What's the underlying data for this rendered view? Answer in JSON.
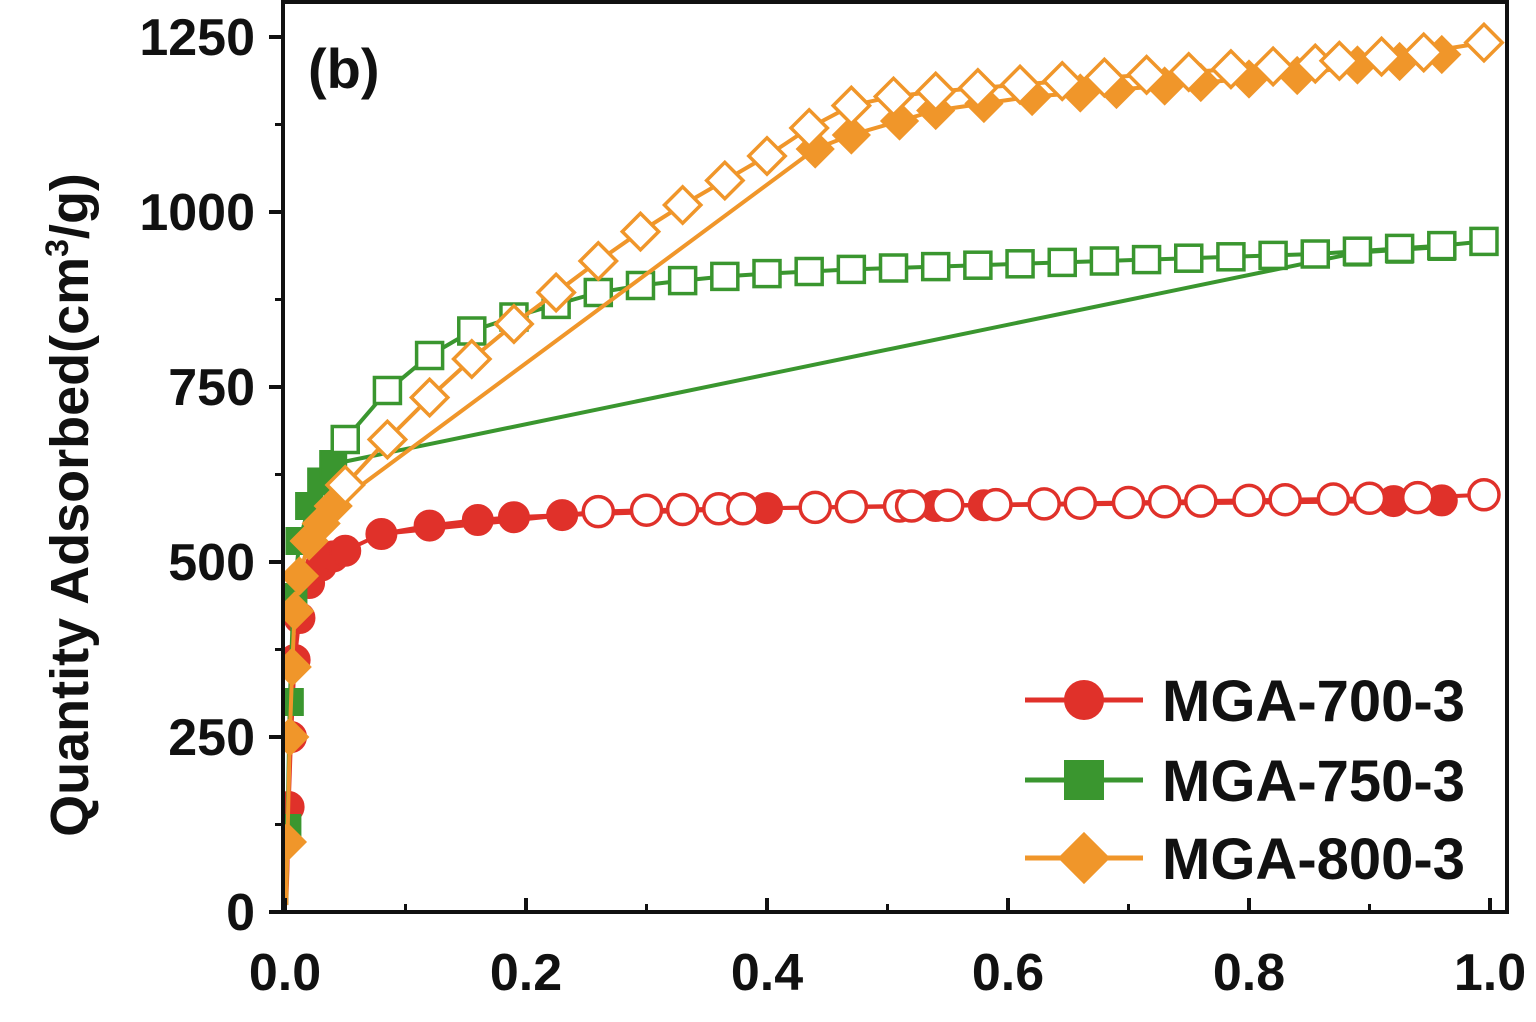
{
  "chart_data": {
    "type": "scatter",
    "panel_label": "(b)",
    "xlabel": "",
    "ylabel_main": "Quantity Adsorbed(cm",
    "ylabel_sup": "3",
    "ylabel_tail": "/g)",
    "xlim": [
      0.0,
      1.0
    ],
    "ylim": [
      0,
      1250
    ],
    "x_ticks": [
      "0.0",
      "0.2",
      "0.4",
      "0.6",
      "0.8",
      "1.0"
    ],
    "y_ticks": [
      "0",
      "250",
      "500",
      "750",
      "1000",
      "1250"
    ],
    "legend_position": "bottom-right",
    "series": [
      {
        "name": "MGA-700-3",
        "color": "#e0312a",
        "marker": "circle",
        "adsorption": {
          "x": [
            0.001,
            0.002,
            0.003,
            0.005,
            0.008,
            0.012,
            0.02,
            0.03,
            0.04,
            0.05,
            0.08,
            0.12,
            0.16,
            0.19,
            0.23,
            0.4,
            0.54,
            0.58,
            0.92,
            0.96
          ],
          "y": [
            10,
            60,
            150,
            250,
            360,
            420,
            470,
            495,
            508,
            516,
            540,
            552,
            560,
            564,
            567,
            577,
            580,
            581,
            587,
            588
          ]
        },
        "desorption": {
          "x": [
            0.26,
            0.3,
            0.33,
            0.36,
            0.38,
            0.44,
            0.47,
            0.51,
            0.52,
            0.55,
            0.59,
            0.63,
            0.66,
            0.7,
            0.73,
            0.76,
            0.8,
            0.83,
            0.87,
            0.9,
            0.94,
            0.995
          ],
          "y": [
            572,
            574,
            575,
            576,
            576,
            578,
            579,
            580,
            580,
            581,
            582,
            583,
            584,
            585,
            586,
            587,
            588,
            589,
            590,
            591,
            592,
            596
          ]
        }
      },
      {
        "name": "MGA-750-3",
        "color": "#3a962f",
        "marker": "square",
        "adsorption": {
          "x": [
            0.001,
            0.002,
            0.004,
            0.007,
            0.012,
            0.02,
            0.03,
            0.04,
            0.89,
            0.925,
            0.96
          ],
          "y": [
            10,
            120,
            300,
            450,
            530,
            580,
            615,
            640,
            942,
            946,
            950
          ]
        },
        "desorption": {
          "x": [
            0.05,
            0.085,
            0.12,
            0.155,
            0.19,
            0.225,
            0.26,
            0.295,
            0.33,
            0.365,
            0.4,
            0.435,
            0.47,
            0.505,
            0.54,
            0.575,
            0.61,
            0.645,
            0.68,
            0.715,
            0.75,
            0.785,
            0.82,
            0.855,
            0.89,
            0.925,
            0.96,
            0.995
          ],
          "y": [
            675,
            745,
            795,
            830,
            850,
            868,
            885,
            895,
            902,
            908,
            912,
            915,
            918,
            920,
            922,
            924,
            926,
            928,
            930,
            932,
            934,
            936,
            938,
            940,
            944,
            948,
            952,
            958
          ]
        }
      },
      {
        "name": "MGA-800-3",
        "color": "#f0962a",
        "marker": "diamond",
        "adsorption": {
          "x": [
            0.001,
            0.002,
            0.004,
            0.006,
            0.008,
            0.012,
            0.02,
            0.03,
            0.04,
            0.44,
            0.47,
            0.51,
            0.54,
            0.58,
            0.62,
            0.66,
            0.69,
            0.73,
            0.76,
            0.8,
            0.84,
            0.89,
            0.925,
            0.96
          ],
          "y": [
            10,
            100,
            250,
            350,
            430,
            480,
            530,
            555,
            580,
            1090,
            1110,
            1130,
            1145,
            1155,
            1165,
            1170,
            1175,
            1180,
            1185,
            1190,
            1195,
            1210,
            1215,
            1225
          ]
        },
        "desorption": {
          "x": [
            0.05,
            0.085,
            0.12,
            0.155,
            0.19,
            0.225,
            0.26,
            0.295,
            0.33,
            0.365,
            0.4,
            0.435,
            0.47,
            0.505,
            0.54,
            0.575,
            0.61,
            0.645,
            0.68,
            0.715,
            0.75,
            0.785,
            0.82,
            0.855,
            0.875,
            0.91,
            0.945,
            0.995
          ],
          "y": [
            610,
            675,
            735,
            790,
            840,
            885,
            930,
            972,
            1010,
            1045,
            1080,
            1120,
            1152,
            1165,
            1172,
            1177,
            1182,
            1187,
            1192,
            1196,
            1200,
            1204,
            1208,
            1212,
            1216,
            1222,
            1228,
            1242
          ]
        }
      }
    ]
  }
}
